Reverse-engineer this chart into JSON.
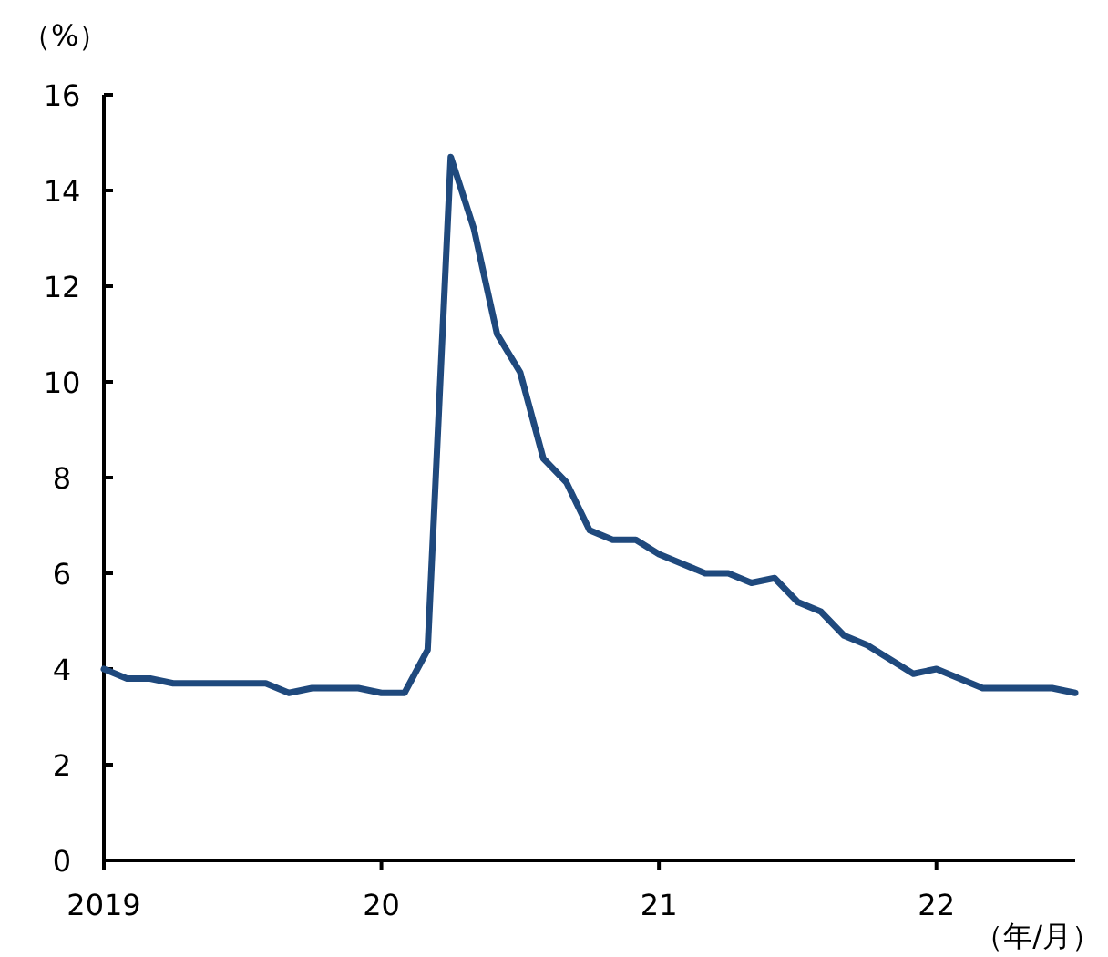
{
  "chart_data": {
    "type": "line",
    "ylabel": "（%）",
    "xlabel": "（年/月）",
    "x": [
      "2019-01",
      "2019-02",
      "2019-03",
      "2019-04",
      "2019-05",
      "2019-06",
      "2019-07",
      "2019-08",
      "2019-09",
      "2019-10",
      "2019-11",
      "2019-12",
      "2020-01",
      "2020-02",
      "2020-03",
      "2020-04",
      "2020-05",
      "2020-06",
      "2020-07",
      "2020-08",
      "2020-09",
      "2020-10",
      "2020-11",
      "2020-12",
      "2021-01",
      "2021-02",
      "2021-03",
      "2021-04",
      "2021-05",
      "2021-06",
      "2021-07",
      "2021-08",
      "2021-09",
      "2021-10",
      "2021-11",
      "2021-12",
      "2022-01",
      "2022-02",
      "2022-03",
      "2022-04",
      "2022-05",
      "2022-06",
      "2022-07"
    ],
    "series": [
      {
        "color": "#1f497d",
        "values": [
          4.0,
          3.8,
          3.8,
          3.7,
          3.7,
          3.7,
          3.7,
          3.7,
          3.5,
          3.6,
          3.6,
          3.6,
          3.5,
          3.5,
          4.4,
          14.7,
          13.2,
          11.0,
          10.2,
          8.4,
          7.9,
          6.9,
          6.7,
          6.7,
          6.4,
          6.2,
          6.0,
          6.0,
          5.8,
          5.9,
          5.4,
          5.2,
          4.7,
          4.5,
          4.2,
          3.9,
          4.0,
          3.8,
          3.6,
          3.6,
          3.6,
          3.6,
          3.5
        ]
      }
    ],
    "xlim": [
      "2019-01",
      "2022-07"
    ],
    "xticks": [
      {
        "value": "2019-01",
        "label": "2019"
      },
      {
        "value": "2020-01",
        "label": "20"
      },
      {
        "value": "2021-01",
        "label": "21"
      },
      {
        "value": "2022-01",
        "label": "22"
      }
    ],
    "ylim": [
      0,
      16
    ],
    "yticks": [
      0,
      2,
      4,
      6,
      8,
      10,
      12,
      14,
      16
    ],
    "grid": false,
    "marker": "none",
    "line_style": "solid"
  }
}
